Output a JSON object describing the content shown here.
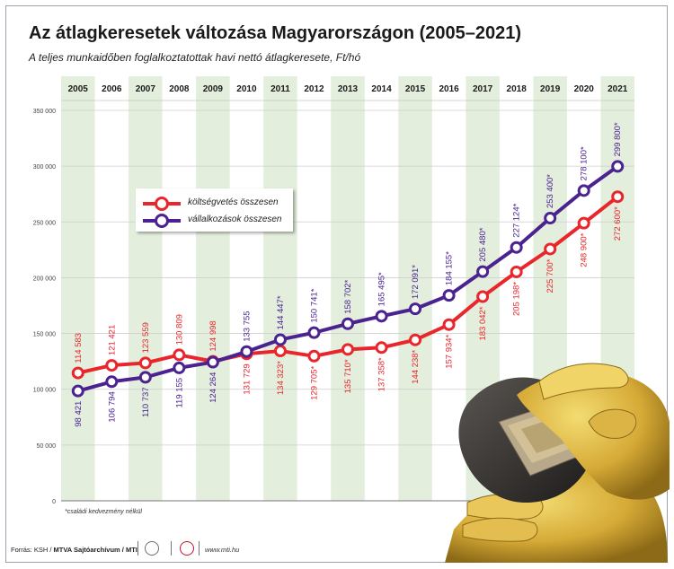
{
  "title": "Az átlagkeresetek változása Magyarországon (2005–2021)",
  "subtitle": "A teljes munkaidőben foglalkoztatottak havi nettó átlagkeresete, Ft/hó",
  "footnote": "*családi kedvezmény nélkül",
  "footer": {
    "source_label": "Forrás: KSH /",
    "agency": "MTVA Sajtóarchívum / MTI",
    "url": "www.mti.hu"
  },
  "legend": {
    "items": [
      "költségvetés összesen",
      "vállalkozások összesen"
    ]
  },
  "colors": {
    "red": "#e8262b",
    "purple": "#4b2391",
    "band": "#e3eedc",
    "grid": "#cfcfcf"
  },
  "chart_data": {
    "type": "line",
    "title": "Az átlagkeresetek változása Magyarországon (2005–2021)",
    "subtitle": "A teljes munkaidőben foglalkoztatottak havi nettó átlagkeresete, Ft/hó",
    "x": [
      "2005",
      "2006",
      "2007",
      "2008",
      "2009",
      "2010",
      "2011",
      "2012",
      "2013",
      "2014",
      "2015",
      "2016",
      "2017",
      "2018",
      "2019",
      "2020",
      "2021"
    ],
    "y_ticks": [
      "0",
      "50 000",
      "100 000",
      "150 000",
      "200 000",
      "250 000",
      "300 000",
      "350 000"
    ],
    "ylim": [
      0,
      350000
    ],
    "grid": true,
    "legend_position": "upper-left",
    "series": [
      {
        "name": "költségvetés összesen",
        "color": "#e8262b",
        "values": [
          114583,
          121421,
          123559,
          130809,
          124998,
          131729,
          134323,
          129705,
          135710,
          137358,
          144238,
          157934,
          183042,
          205198,
          225700,
          248900,
          272600
        ],
        "labels": [
          "114 583",
          "121 421",
          "123 559",
          "130 809",
          "124 998",
          "131 729",
          "134 323*",
          "129 705*",
          "135 710*",
          "137 358*",
          "144 238*",
          "157 934*",
          "183 042*",
          "205 198*",
          "225 700*",
          "248 900*",
          "272 600*"
        ],
        "label_position": [
          "above",
          "above",
          "above",
          "above",
          "above",
          "below",
          "below",
          "below",
          "below",
          "below",
          "below",
          "below",
          "below",
          "below",
          "below",
          "below",
          "below"
        ]
      },
      {
        "name": "vállalkozások összesen",
        "color": "#4b2391",
        "values": [
          98421,
          106794,
          110737,
          119155,
          124264,
          133755,
          144447,
          150741,
          158702,
          165495,
          172091,
          184155,
          205480,
          227124,
          253400,
          278100,
          299800
        ],
        "labels": [
          "98 421",
          "106 794",
          "110 737",
          "119 155",
          "124 264",
          "133 755",
          "144 447*",
          "150 741*",
          "158 702*",
          "165 495*",
          "172 091*",
          "184 155*",
          "205 480*",
          "227 124*",
          "253 400*",
          "278 100*",
          "299 800*"
        ],
        "label_position": [
          "below",
          "below",
          "below",
          "below",
          "below",
          "above",
          "above",
          "above",
          "above",
          "above",
          "above",
          "above",
          "above",
          "above",
          "above",
          "above",
          "above"
        ]
      }
    ]
  }
}
